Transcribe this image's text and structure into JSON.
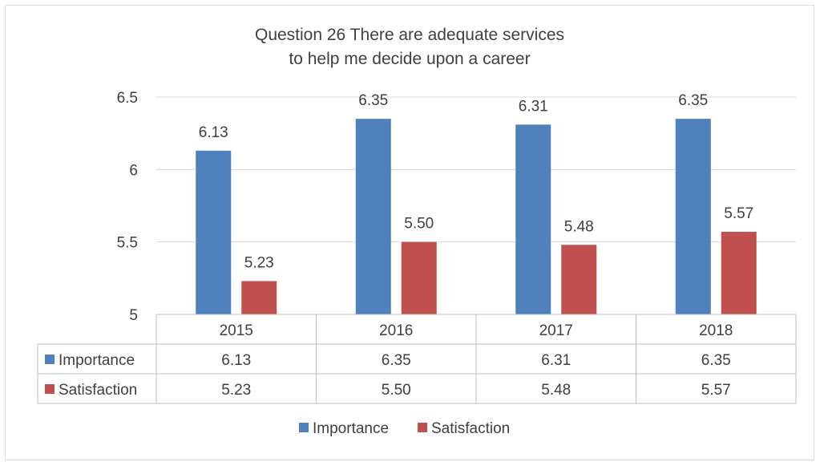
{
  "chart_data": {
    "type": "bar",
    "title_lines": [
      "Question 26  There are adequate services",
      "to help me decide upon a career"
    ],
    "categories": [
      "2015",
      "2016",
      "2017",
      "2018"
    ],
    "series": [
      {
        "name": "Importance",
        "color": "#4f81bd",
        "values": [
          6.13,
          6.35,
          6.31,
          6.35
        ],
        "labels": [
          "6.13",
          "6.35",
          "6.31",
          "6.35"
        ]
      },
      {
        "name": "Satisfaction",
        "color": "#c0504d",
        "values": [
          5.23,
          5.5,
          5.48,
          5.57
        ],
        "labels": [
          "5.23",
          "5.50",
          "5.48",
          "5.57"
        ]
      }
    ],
    "ylim": [
      5,
      6.5
    ],
    "yticks": [
      5,
      5.5,
      6,
      6.5
    ],
    "ytick_labels": [
      "5",
      "5.5",
      "6",
      "6.5"
    ],
    "grid": true,
    "data_table": true,
    "legend_position": "bottom"
  }
}
